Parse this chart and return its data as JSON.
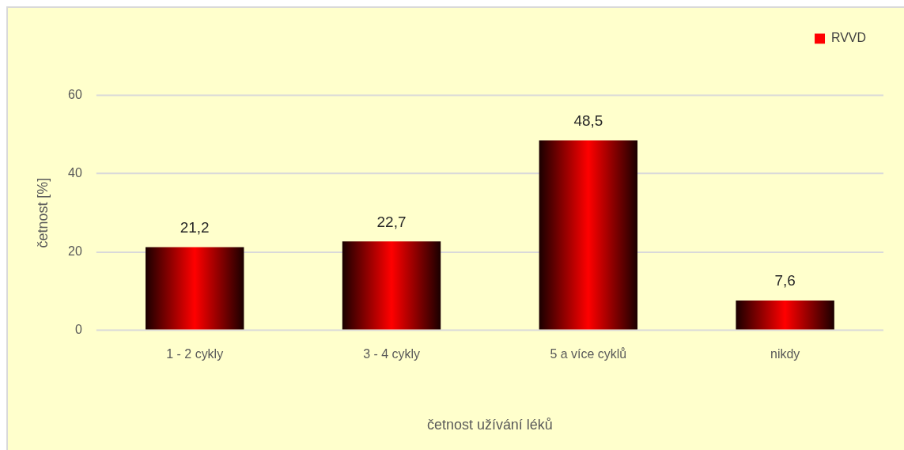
{
  "chart_data": {
    "type": "bar",
    "xlabel": "četnost užívání léků",
    "ylabel": "četnost [%]",
    "categories": [
      "1 - 2 cykly",
      "3 - 4 cykly",
      "5 a více cyklů",
      "nikdy"
    ],
    "series": [
      {
        "name": "RVVD",
        "color": "#ff0000",
        "values": [
          21.2,
          22.7,
          48.5,
          7.6
        ],
        "value_labels": [
          "21,2",
          "22,7",
          "48,5",
          "7,6"
        ]
      }
    ],
    "ylim": [
      0,
      60
    ],
    "yticks": [
      0,
      20,
      40,
      60
    ],
    "grid": "y",
    "legend": "top right"
  }
}
